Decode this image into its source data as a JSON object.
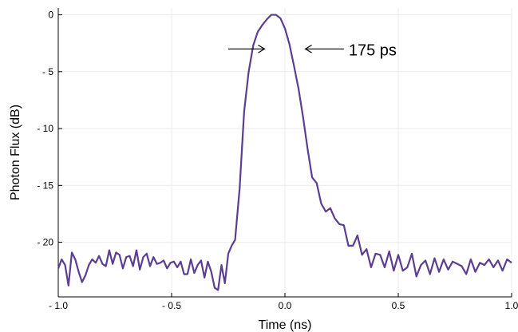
{
  "chart_data": {
    "type": "line",
    "xlabel": "Time (ns)",
    "ylabel": "Photon Flux (dB)",
    "xlim": [
      -1.0,
      1.0
    ],
    "ylim": [
      -24.8,
      0.6
    ],
    "xticks": [
      -1.0,
      -0.5,
      0.0,
      0.5,
      1.0
    ],
    "xtick_labels": [
      "- 1.0",
      "- 0.5",
      "0.0",
      "0.5",
      "1.0"
    ],
    "yticks": [
      0,
      -5,
      -10,
      -15,
      -20
    ],
    "ytick_labels": [
      "0",
      "- 5",
      "- 10",
      "- 15",
      "- 20"
    ],
    "grid": true,
    "line_color": "#5b3d92",
    "annotation": {
      "text": "175 ps",
      "y": -3.0,
      "left_arrow": {
        "from_x": -0.25,
        "to_x": -0.09
      },
      "right_arrow": {
        "from_x": 0.26,
        "to_x": 0.09
      }
    },
    "series": [
      {
        "x": [
          -1.0,
          -0.985,
          -0.97,
          -0.955,
          -0.94,
          -0.925,
          -0.91,
          -0.895,
          -0.88,
          -0.865,
          -0.85,
          -0.835,
          -0.82,
          -0.805,
          -0.79,
          -0.775,
          -0.76,
          -0.745,
          -0.73,
          -0.715,
          -0.7,
          -0.685,
          -0.67,
          -0.655,
          -0.64,
          -0.625,
          -0.61,
          -0.595,
          -0.58,
          -0.565,
          -0.55,
          -0.535,
          -0.52,
          -0.505,
          -0.49,
          -0.475,
          -0.46,
          -0.445,
          -0.43,
          -0.415,
          -0.4,
          -0.385,
          -0.37,
          -0.355,
          -0.34,
          -0.325,
          -0.31,
          -0.295,
          -0.28,
          -0.265,
          -0.25,
          -0.235,
          -0.22,
          -0.2,
          -0.18,
          -0.16,
          -0.14,
          -0.12,
          -0.1,
          -0.08,
          -0.06,
          -0.04,
          -0.02,
          0.0,
          0.02,
          0.04,
          0.06,
          0.08,
          0.1,
          0.12,
          0.14,
          0.16,
          0.18,
          0.2,
          0.22,
          0.24,
          0.26,
          0.28,
          0.3,
          0.32,
          0.34,
          0.36,
          0.38,
          0.4,
          0.42,
          0.44,
          0.46,
          0.48,
          0.5,
          0.52,
          0.54,
          0.56,
          0.58,
          0.6,
          0.62,
          0.64,
          0.66,
          0.68,
          0.7,
          0.72,
          0.74,
          0.76,
          0.78,
          0.8,
          0.82,
          0.84,
          0.86,
          0.88,
          0.9,
          0.92,
          0.94,
          0.96,
          0.98,
          1.0
        ],
        "y": [
          -22.3,
          -21.5,
          -22.0,
          -23.8,
          -20.9,
          -21.5,
          -22.6,
          -23.5,
          -22.9,
          -22.0,
          -21.5,
          -21.8,
          -21.2,
          -21.9,
          -22.1,
          -20.7,
          -21.9,
          -20.9,
          -21.1,
          -22.3,
          -21.3,
          -21.2,
          -22.1,
          -20.7,
          -22.4,
          -21.3,
          -21.0,
          -22.1,
          -21.3,
          -21.9,
          -21.8,
          -21.6,
          -22.3,
          -21.8,
          -21.7,
          -22.2,
          -21.7,
          -22.8,
          -22.8,
          -21.5,
          -22.7,
          -22.0,
          -21.6,
          -23.1,
          -21.7,
          -22.6,
          -24.0,
          -24.2,
          -22.0,
          -23.6,
          -21.0,
          -20.3,
          -19.8,
          -15.3,
          -8.5,
          -5.0,
          -2.7,
          -1.5,
          -0.9,
          -0.4,
          0.0,
          0.0,
          -0.3,
          -1.2,
          -2.6,
          -4.5,
          -6.5,
          -9.0,
          -11.8,
          -14.3,
          -14.8,
          -16.6,
          -17.3,
          -17.0,
          -17.9,
          -18.4,
          -18.5,
          -20.3,
          -20.3,
          -19.4,
          -21.1,
          -20.6,
          -22.2,
          -21.0,
          -21.1,
          -22.2,
          -20.8,
          -22.5,
          -21.1,
          -22.5,
          -22.2,
          -21.0,
          -23.0,
          -22.0,
          -21.6,
          -22.8,
          -21.4,
          -22.6,
          -21.5,
          -22.4,
          -21.7,
          -21.9,
          -22.1,
          -22.8,
          -21.5,
          -22.6,
          -21.8,
          -22.0,
          -21.5,
          -22.2,
          -21.6,
          -22.5,
          -21.5,
          -21.8
        ]
      }
    ]
  }
}
